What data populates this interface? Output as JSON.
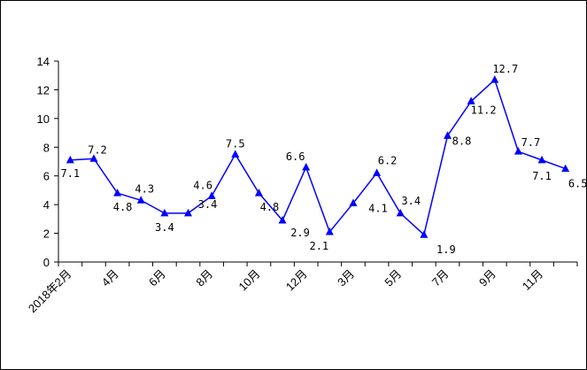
{
  "chart_data": {
    "type": "line",
    "title": "",
    "xlabel": "",
    "ylabel": "",
    "ylim": [
      0,
      14
    ],
    "yticks": [
      0,
      2,
      4,
      6,
      8,
      10,
      12,
      14
    ],
    "grid": false,
    "legend": "none",
    "categories": [
      "2018年2月",
      "",
      "4月",
      "",
      "6月",
      "",
      "8月",
      "",
      "10月",
      "",
      "12月",
      "",
      "3月",
      "",
      "5月",
      "",
      "7月",
      "",
      "9月",
      "",
      "11月",
      ""
    ],
    "series": [
      {
        "name": "",
        "color": "#0000FF",
        "values": [
          7.1,
          7.2,
          4.8,
          4.3,
          3.4,
          3.4,
          4.6,
          7.5,
          4.8,
          2.9,
          6.6,
          2.1,
          4.1,
          6.2,
          3.4,
          1.9,
          8.8,
          11.2,
          12.7,
          7.7,
          7.1,
          6.5
        ],
        "labels": [
          "7.1",
          "7.2",
          "4.8",
          "4.3",
          "3.4",
          "3.4",
          "4.6",
          "7.5",
          "4.8",
          "2.9",
          "6.6",
          "2.1",
          "4.1",
          "6.2",
          "3.4",
          "1.9",
          "8.8",
          "11.2",
          "12.7",
          "7.7",
          "7.1",
          "6.5"
        ]
      }
    ]
  }
}
